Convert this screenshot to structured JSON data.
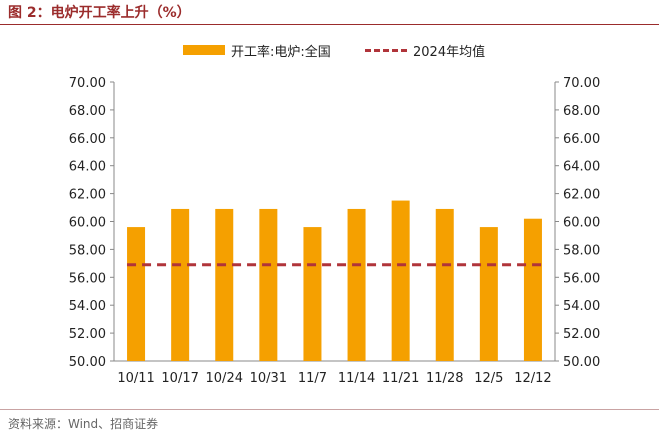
{
  "figure_title": "图 2：电炉开工率上升（%）",
  "source_note": "资料来源：Wind、招商证券",
  "colors": {
    "bar": "#f5a000",
    "avg_line": "#b0343a",
    "title": "#9b2c2c"
  },
  "legend": {
    "bar_label": "开工率:电炉:全国",
    "line_label": "2024年均值"
  },
  "chart_data": {
    "type": "bar",
    "categories": [
      "10/11",
      "10/17",
      "10/24",
      "10/31",
      "11/7",
      "11/14",
      "11/21",
      "11/28",
      "12/5",
      "12/12"
    ],
    "series": [
      {
        "name": "开工率:电炉:全国",
        "type": "bar",
        "values": [
          59.6,
          60.9,
          60.9,
          60.9,
          59.6,
          60.9,
          61.5,
          60.9,
          59.6,
          60.2
        ]
      },
      {
        "name": "2024年均值",
        "type": "line",
        "style": "dashed",
        "values": [
          56.9,
          56.9,
          56.9,
          56.9,
          56.9,
          56.9,
          56.9,
          56.9,
          56.9,
          56.9
        ]
      }
    ],
    "ylim": [
      50,
      70
    ],
    "yticks": [
      "50.00",
      "52.00",
      "54.00",
      "56.00",
      "58.00",
      "60.00",
      "62.00",
      "64.00",
      "66.00",
      "68.00",
      "70.00"
    ],
    "y_axes": "left and right, identical scale",
    "legend_position": "top-center",
    "grid": false
  }
}
